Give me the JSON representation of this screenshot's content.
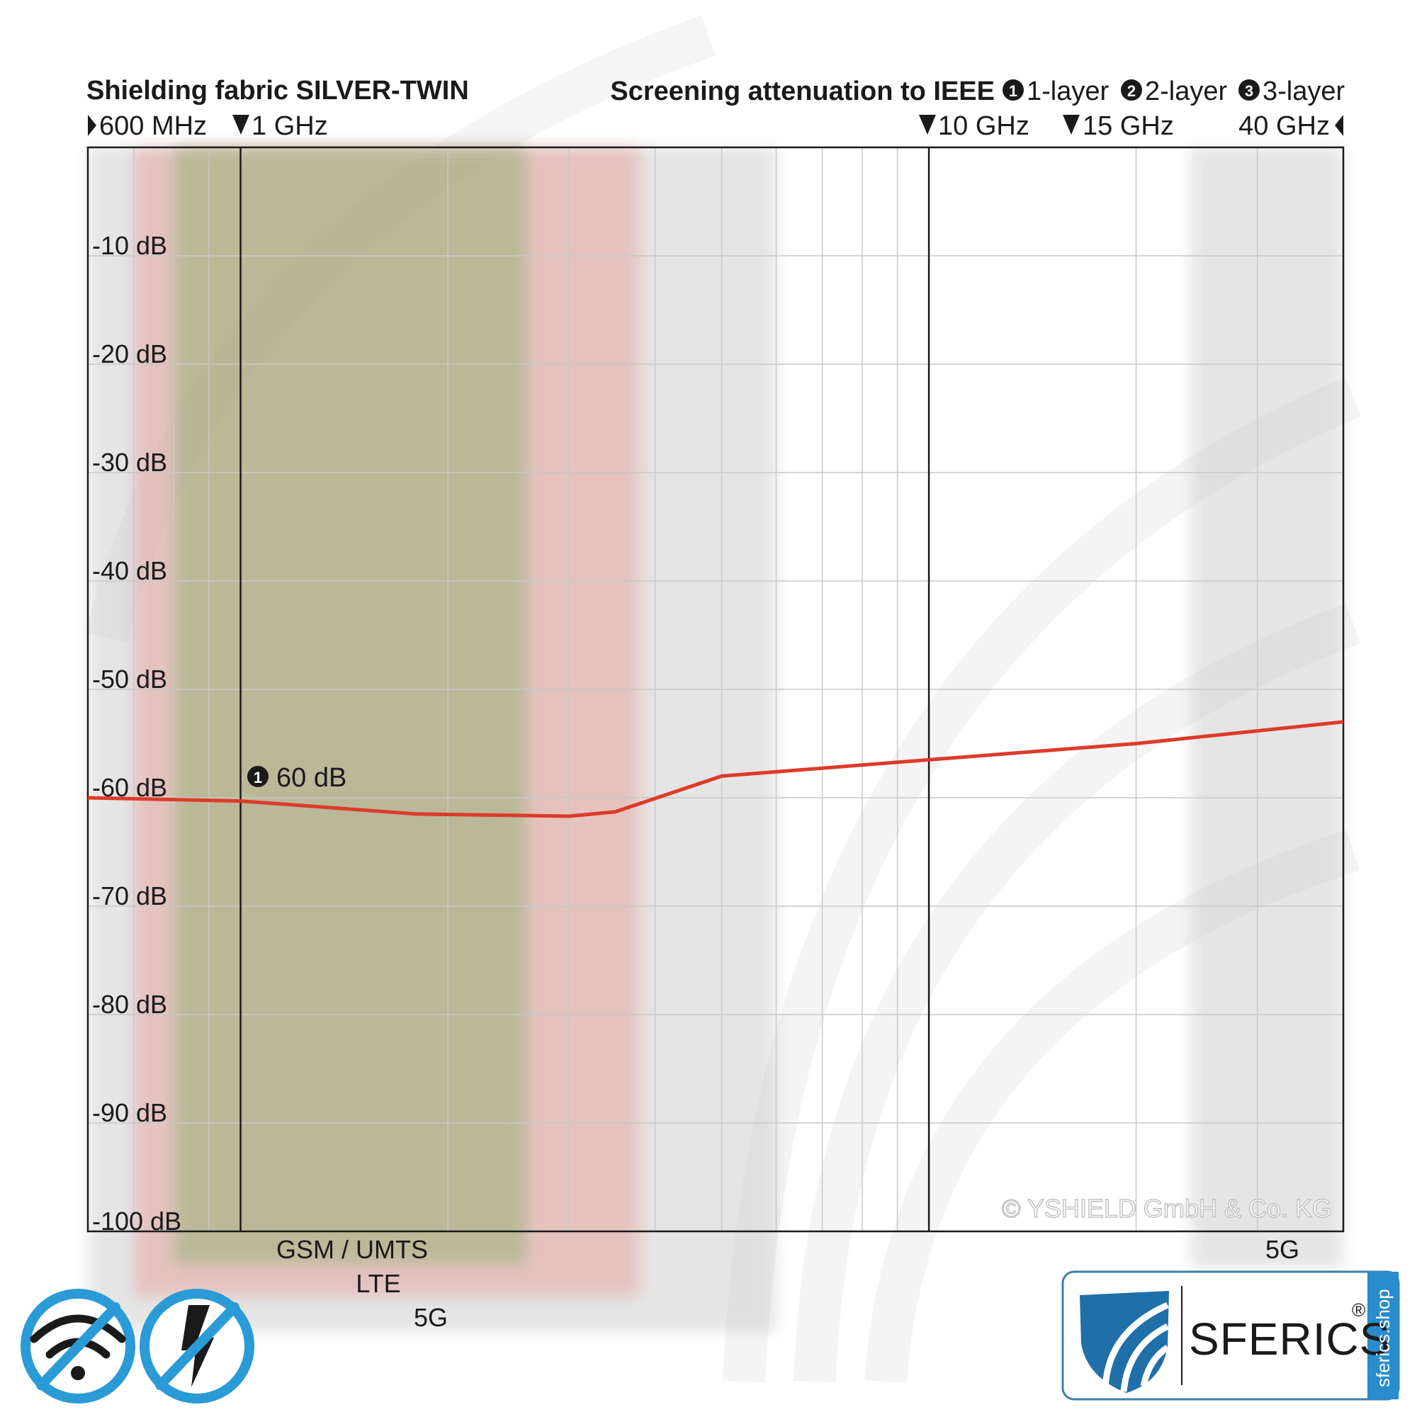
{
  "chart_data": {
    "type": "line",
    "title": "Shielding fabric SILVER-TWIN",
    "subtitle": "Screening attenuation to IEEE",
    "layer_legend": [
      {
        "marker": "➊",
        "label": "1-layer"
      },
      {
        "marker": "➋",
        "label": "2-layer"
      },
      {
        "marker": "➌",
        "label": "3-layer"
      }
    ],
    "freq_markers": [
      {
        "label": "600 MHz",
        "value_ghz": 0.6
      },
      {
        "label": "1 GHz",
        "value_ghz": 1
      },
      {
        "label": "10 GHz",
        "value_ghz": 10
      },
      {
        "label": "15 GHz",
        "value_ghz": 15
      },
      {
        "label": "40 GHz",
        "value_ghz": 40
      }
    ],
    "x_scale": "log",
    "xlim_ghz": [
      0.6,
      40
    ],
    "ylim": [
      -100,
      0
    ],
    "y_ticks": [
      {
        "label": "-10 dB",
        "value": -10
      },
      {
        "label": "-20 dB",
        "value": -20
      },
      {
        "label": "-30 dB",
        "value": -30
      },
      {
        "label": "-40 dB",
        "value": -40
      },
      {
        "label": "-50 dB",
        "value": -50
      },
      {
        "label": "-60 dB",
        "value": -60
      },
      {
        "label": "-70 dB",
        "value": -70
      },
      {
        "label": "-80 dB",
        "value": -80
      },
      {
        "label": "-90 dB",
        "value": -90
      },
      {
        "label": "-100 dB",
        "value": -100
      }
    ],
    "grid": true,
    "series": [
      {
        "color": "#dd3a2a",
        "x_ghz": [
          0.6,
          1,
          1.8,
          3.0,
          3.5,
          5.0,
          10,
          20,
          40
        ],
        "y_db": [
          -60.0,
          -60.3,
          -61.5,
          -61.7,
          -61.3,
          -58.0,
          -56.5,
          -55.0,
          -53.0
        ]
      }
    ],
    "annotation": {
      "marker": "➊",
      "label": "60 dB",
      "x_ghz": 1
    },
    "bands": [
      {
        "label": "GSM / UMTS",
        "x_ghz": [
          0.8,
          2.6
        ],
        "color": "#9ab07a"
      },
      {
        "label": "LTE",
        "x_ghz": [
          0.7,
          3.8
        ],
        "color": "#e49a92"
      },
      {
        "label": "5G",
        "x_ghz": [
          0.6,
          6.0
        ],
        "color": "#c6c6c6"
      },
      {
        "label": "5G",
        "x_ghz": [
          24,
          40
        ],
        "color": "#c6c6c6"
      }
    ],
    "copyright": "© YSHIELD GmbH & Co. KG"
  },
  "branding": {
    "name": "SFERICS",
    "registered": "®",
    "url": "sferics.shop",
    "accent": "#2a8ccc",
    "icons": [
      "no-wifi-icon",
      "no-electric-field-icon"
    ]
  }
}
